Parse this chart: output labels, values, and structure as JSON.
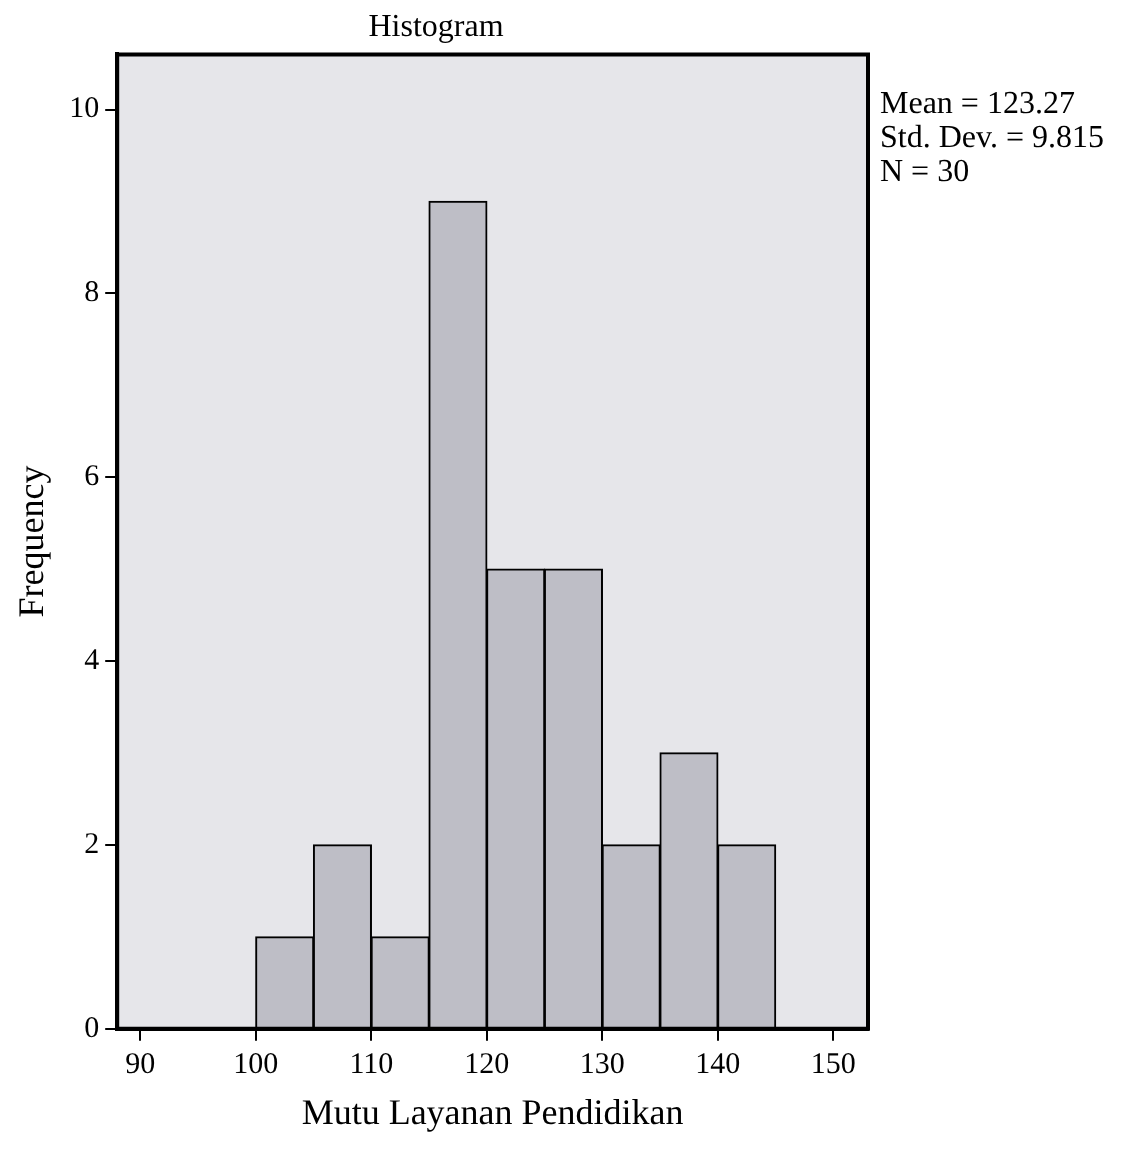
{
  "chart_data": {
    "type": "histogram",
    "title": "Histogram",
    "xlabel": "Mutu Layanan Pendidikan",
    "ylabel": "Frequency",
    "bins": [
      100,
      105,
      110,
      115,
      120,
      125,
      130,
      135,
      140,
      145
    ],
    "values": [
      1,
      2,
      1,
      9,
      5,
      5,
      2,
      3,
      2
    ],
    "color": "#bebec6",
    "xlim": [
      88,
      153
    ],
    "xticks": [
      90,
      100,
      110,
      120,
      130,
      140,
      150
    ],
    "ylim": [
      0,
      10.6
    ],
    "yticks": [
      0,
      2,
      4,
      6,
      8,
      10
    ],
    "grid": false,
    "legend": false,
    "annotations": [
      "Mean = 123.27",
      "Std. Dev. = 9.815",
      "N = 30"
    ]
  }
}
